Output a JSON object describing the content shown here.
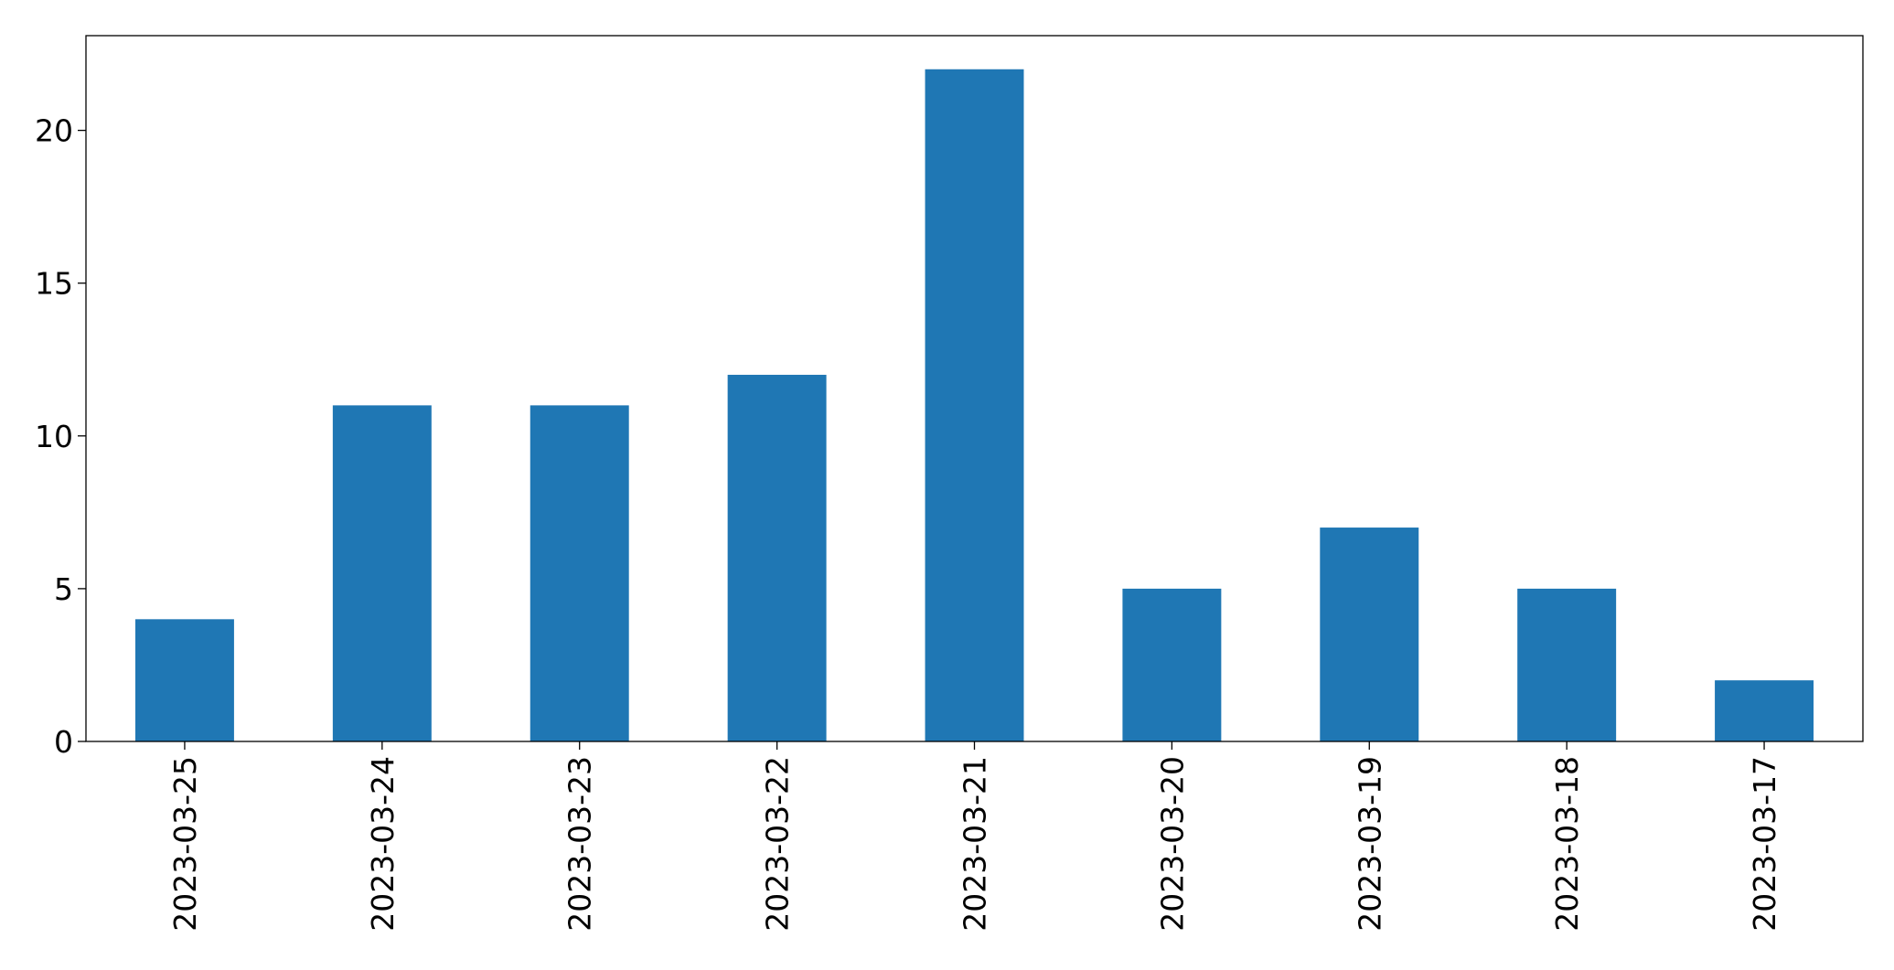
{
  "chart_data": {
    "type": "bar",
    "categories": [
      "2023-03-25",
      "2023-03-24",
      "2023-03-23",
      "2023-03-22",
      "2023-03-21",
      "2023-03-20",
      "2023-03-19",
      "2023-03-18",
      "2023-03-17"
    ],
    "values": [
      4,
      11,
      11,
      12,
      22,
      5,
      7,
      5,
      2
    ],
    "title": "",
    "xlabel": "",
    "ylabel": "",
    "ylim": [
      0,
      23.1
    ],
    "yticks": [
      0,
      5,
      10,
      15,
      20
    ],
    "grid": false,
    "legend": "none",
    "bar_color": "#1f77b4"
  }
}
